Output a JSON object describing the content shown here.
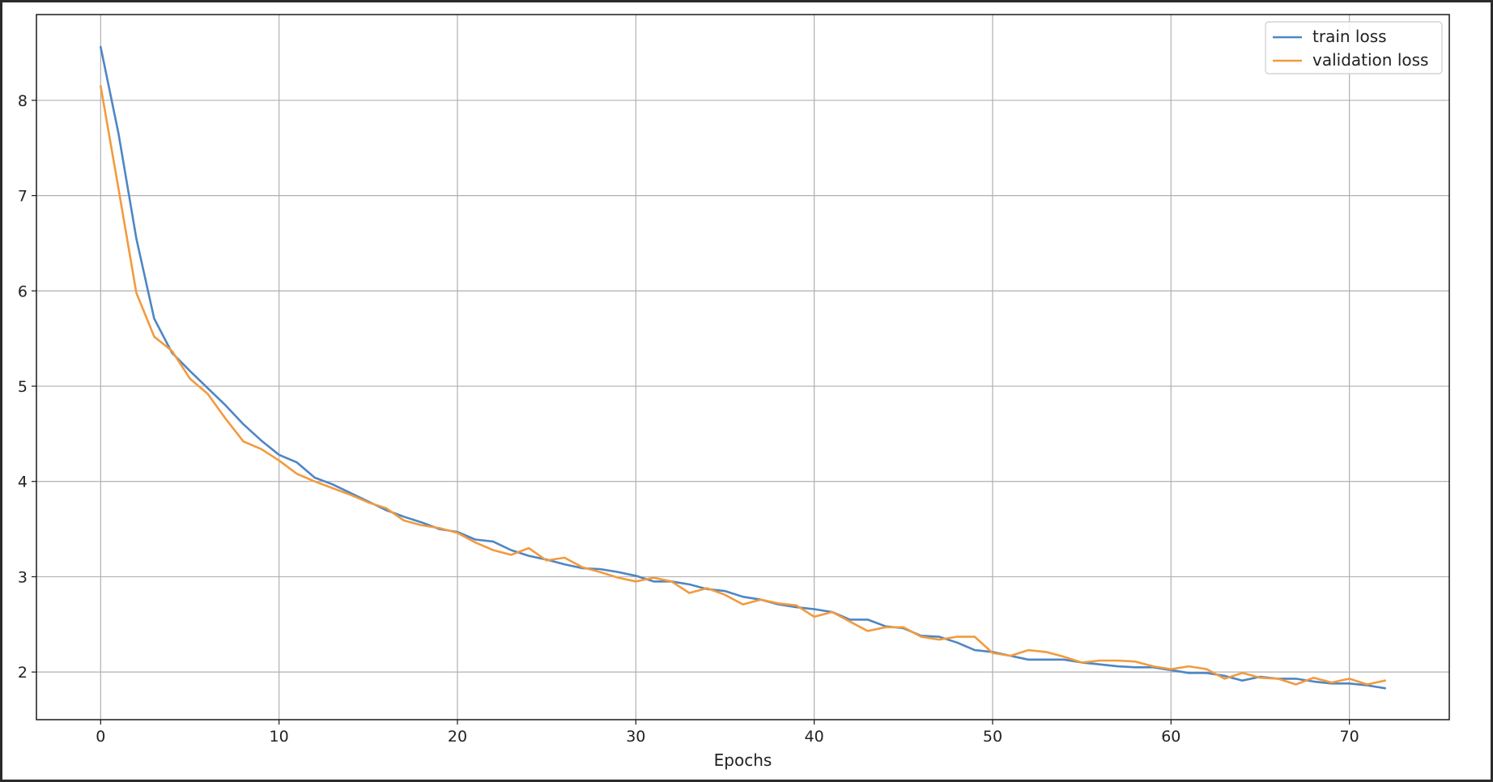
{
  "chart_data": {
    "type": "line",
    "title": "",
    "xlabel": "Epochs",
    "ylabel": "",
    "xlim": [
      -3.6,
      75.6
    ],
    "ylim": [
      1.5,
      8.9
    ],
    "xticks": [
      0,
      10,
      20,
      30,
      40,
      50,
      60,
      70
    ],
    "yticks": [
      2,
      3,
      4,
      5,
      6,
      7,
      8
    ],
    "grid": true,
    "legend_position": "top-right",
    "colors": {
      "train": "#4e86c4",
      "validation": "#f39a3e"
    },
    "series": [
      {
        "name": "train loss",
        "color": "#4e86c4",
        "x": [
          0,
          1,
          2,
          3,
          4,
          5,
          6,
          7,
          8,
          9,
          10,
          11,
          12,
          13,
          14,
          15,
          16,
          17,
          18,
          19,
          20,
          21,
          22,
          23,
          24,
          25,
          26,
          27,
          28,
          29,
          30,
          31,
          32,
          33,
          34,
          35,
          36,
          37,
          38,
          39,
          40,
          41,
          42,
          43,
          44,
          45,
          46,
          47,
          48,
          49,
          50,
          51,
          52,
          53,
          54,
          55,
          56,
          57,
          58,
          59,
          60,
          61,
          62,
          63,
          64,
          65,
          66,
          67,
          68,
          69,
          70,
          71,
          72
        ],
        "values": [
          8.56,
          7.65,
          6.55,
          5.71,
          5.35,
          5.16,
          4.98,
          4.8,
          4.6,
          4.43,
          4.28,
          4.2,
          4.04,
          3.97,
          3.88,
          3.79,
          3.7,
          3.63,
          3.57,
          3.5,
          3.47,
          3.39,
          3.37,
          3.28,
          3.22,
          3.18,
          3.13,
          3.09,
          3.08,
          3.05,
          3.01,
          2.95,
          2.95,
          2.92,
          2.87,
          2.85,
          2.79,
          2.76,
          2.71,
          2.68,
          2.66,
          2.63,
          2.55,
          2.55,
          2.48,
          2.46,
          2.38,
          2.37,
          2.31,
          2.23,
          2.21,
          2.17,
          2.13,
          2.13,
          2.13,
          2.1,
          2.08,
          2.06,
          2.05,
          2.05,
          2.02,
          1.99,
          1.99,
          1.96,
          1.91,
          1.95,
          1.93,
          1.93,
          1.9,
          1.88,
          1.88,
          1.86,
          1.83
        ]
      },
      {
        "name": "validation loss",
        "color": "#f39a3e",
        "x": [
          0,
          1,
          2,
          3,
          4,
          5,
          6,
          7,
          8,
          9,
          10,
          11,
          12,
          13,
          14,
          15,
          16,
          17,
          18,
          19,
          20,
          21,
          22,
          23,
          24,
          25,
          26,
          27,
          28,
          29,
          30,
          31,
          32,
          33,
          34,
          35,
          36,
          37,
          38,
          39,
          40,
          41,
          42,
          43,
          44,
          45,
          46,
          47,
          48,
          49,
          50,
          51,
          52,
          53,
          54,
          55,
          56,
          57,
          58,
          59,
          60,
          61,
          62,
          63,
          64,
          65,
          66,
          67,
          68,
          69,
          70,
          71,
          72
        ],
        "values": [
          8.15,
          7.07,
          5.98,
          5.52,
          5.37,
          5.08,
          4.92,
          4.66,
          4.42,
          4.34,
          4.22,
          4.08,
          4.0,
          3.93,
          3.86,
          3.78,
          3.72,
          3.59,
          3.54,
          3.51,
          3.46,
          3.36,
          3.28,
          3.23,
          3.3,
          3.17,
          3.2,
          3.1,
          3.05,
          2.99,
          2.95,
          2.99,
          2.95,
          2.83,
          2.88,
          2.81,
          2.71,
          2.76,
          2.72,
          2.7,
          2.58,
          2.63,
          2.53,
          2.43,
          2.47,
          2.47,
          2.37,
          2.34,
          2.37,
          2.37,
          2.2,
          2.17,
          2.23,
          2.21,
          2.16,
          2.1,
          2.12,
          2.12,
          2.11,
          2.06,
          2.03,
          2.06,
          2.03,
          1.93,
          1.99,
          1.94,
          1.93,
          1.87,
          1.94,
          1.89,
          1.93,
          1.87,
          1.91
        ]
      }
    ]
  }
}
